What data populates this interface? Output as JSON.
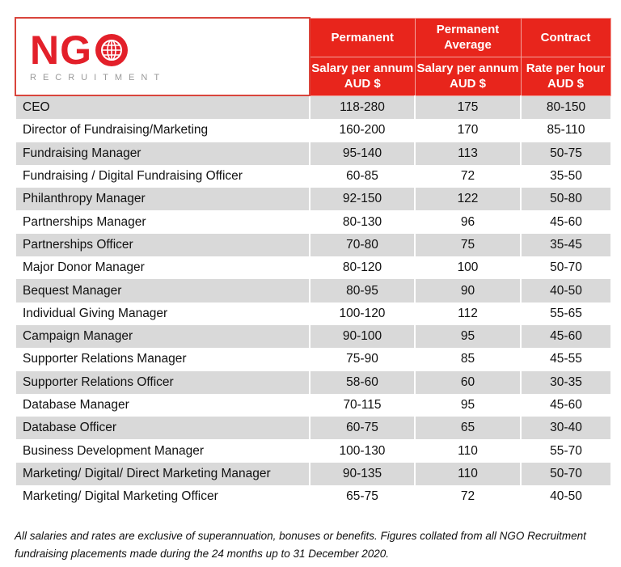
{
  "logo": {
    "text": "NGO",
    "subtext": "RECRUITMENT",
    "color": "#e3202a"
  },
  "header": {
    "columns": [
      {
        "top": "Permanent",
        "sub": "Salary per annum AUD $"
      },
      {
        "top": "Permanent Average",
        "sub": "Salary per annum AUD $"
      },
      {
        "top": "Contract",
        "sub": "Rate per hour AUD $"
      }
    ],
    "accent": "#e8251c"
  },
  "rows": [
    {
      "role": "CEO",
      "permanent": "118-280",
      "average": "175",
      "contract": "80-150"
    },
    {
      "role": "Director of Fundraising/Marketing",
      "permanent": "160-200",
      "average": "170",
      "contract": "85-110"
    },
    {
      "role": "Fundraising Manager",
      "permanent": "95-140",
      "average": "113",
      "contract": "50-75"
    },
    {
      "role": "Fundraising / Digital Fundraising Officer",
      "permanent": "60-85",
      "average": "72",
      "contract": "35-50"
    },
    {
      "role": "Philanthropy Manager",
      "permanent": "92-150",
      "average": "122",
      "contract": "50-80"
    },
    {
      "role": "Partnerships Manager",
      "permanent": "80-130",
      "average": "96",
      "contract": "45-60"
    },
    {
      "role": "Partnerships Officer",
      "permanent": "70-80",
      "average": "75",
      "contract": "35-45"
    },
    {
      "role": "Major Donor Manager",
      "permanent": "80-120",
      "average": "100",
      "contract": "50-70"
    },
    {
      "role": "Bequest Manager",
      "permanent": "80-95",
      "average": "90",
      "contract": "40-50"
    },
    {
      "role": "Individual Giving Manager",
      "permanent": "100-120",
      "average": "112",
      "contract": "55-65"
    },
    {
      "role": "Campaign Manager",
      "permanent": "90-100",
      "average": "95",
      "contract": "45-60"
    },
    {
      "role": "Supporter Relations Manager",
      "permanent": "75-90",
      "average": "85",
      "contract": "45-55"
    },
    {
      "role": "Supporter Relations Officer",
      "permanent": "58-60",
      "average": "60",
      "contract": "30-35"
    },
    {
      "role": "Database Manager",
      "permanent": "70-115",
      "average": "95",
      "contract": "45-60"
    },
    {
      "role": "Database Officer",
      "permanent": "60-75",
      "average": "65",
      "contract": "30-40"
    },
    {
      "role": "Business Development Manager",
      "permanent": "100-130",
      "average": "110",
      "contract": "55-70"
    },
    {
      "role": "Marketing/ Digital/ Direct Marketing Manager",
      "permanent": "90-135",
      "average": "110",
      "contract": "50-70"
    },
    {
      "role": "Marketing/ Digital Marketing Officer",
      "permanent": "65-75",
      "average": "72",
      "contract": "40-50"
    }
  ],
  "footnote": "All salaries and rates are exclusive of superannuation, bonuses or benefits. Figures collated from all NGO Recruitment fundraising placements made during the 24 months up to 31 December 2020."
}
